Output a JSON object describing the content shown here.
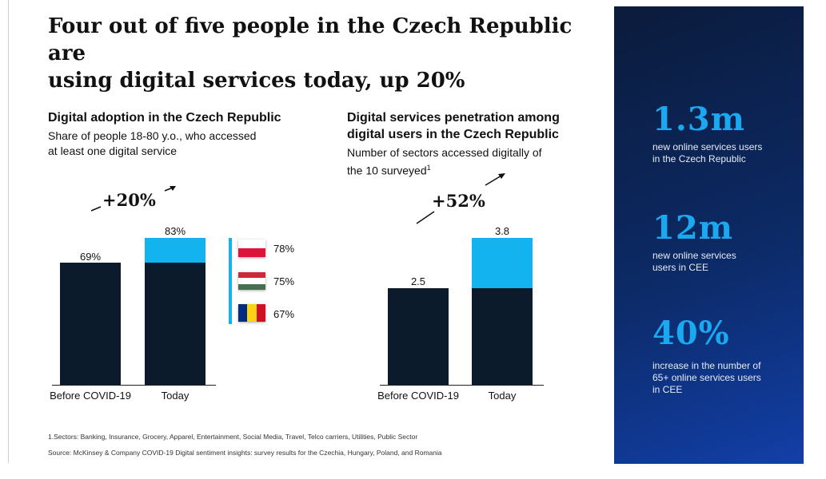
{
  "headline": {
    "line1": "Four out of five people in the Czech Republic are",
    "line2": "using digital services today, up 20%"
  },
  "colors": {
    "navy": "#0b1b2b",
    "cyan": "#12b3ee",
    "panel_start": "#0b1b3b",
    "panel_end": "#123fa8",
    "stat": "#1aa9f0"
  },
  "left_section": {
    "title": "Digital adoption in the Czech Republic",
    "subtitle_1": "Share of people 18-80 y.o., who accessed",
    "subtitle_2": "at least one digital service",
    "growth": "+20%",
    "bar_labels": [
      "69%",
      "83%"
    ],
    "flags": [
      {
        "country_icon": "poland-flag-icon",
        "value": "78%"
      },
      {
        "country_icon": "hungary-flag-icon",
        "value": "75%"
      },
      {
        "country_icon": "romania-flag-icon",
        "value": "67%"
      }
    ]
  },
  "right_section": {
    "title_1": "Digital services penetration among",
    "title_2": "digital users in the Czech Republic",
    "subtitle_1": "Number of sectors accessed digitally of",
    "subtitle_2": "the 10 surveyed",
    "subtitle_sup": "1",
    "growth": "+52%",
    "bar_labels": [
      "2.5",
      "3.8"
    ]
  },
  "chart_data": [
    {
      "type": "bar",
      "title": "Digital adoption in the Czech Republic",
      "categories": [
        "Before COVID-19",
        "Today"
      ],
      "values": [
        69,
        83
      ],
      "unit": "%",
      "ylim": [
        0,
        83
      ],
      "comparison": [
        {
          "icon": "poland-flag-icon",
          "value": 78
        },
        {
          "icon": "hungary-flag-icon",
          "value": 75
        },
        {
          "icon": "romania-flag-icon",
          "value": 67
        }
      ]
    },
    {
      "type": "bar",
      "title": "Digital services penetration among digital users in the Czech Republic",
      "categories": [
        "Before COVID-19",
        "Today"
      ],
      "values": [
        2.5,
        3.8
      ],
      "ylim": [
        0,
        3.8
      ]
    }
  ],
  "footnotes": {
    "note1": "1.Sectors: Banking, Insurance, Grocery, Apparel, Entertainment, Social Media, Travel, Telco carriers, Utilities, Public Sector",
    "source": "Source: McKinsey & Company COVID-19 Digital sentiment insights: survey results for the Czechia, Hungary, Poland, and Romania"
  },
  "panel": {
    "stats": [
      {
        "value": "1.3m",
        "line1": "new online services users",
        "line2": "in the Czech Republic",
        "line3": ""
      },
      {
        "value": "12m",
        "line1": "new online services",
        "line2": "users in CEE",
        "line3": ""
      },
      {
        "value": "40%",
        "line1": "increase in the number of",
        "line2": "65+ online services users",
        "line3": "in CEE"
      }
    ]
  }
}
